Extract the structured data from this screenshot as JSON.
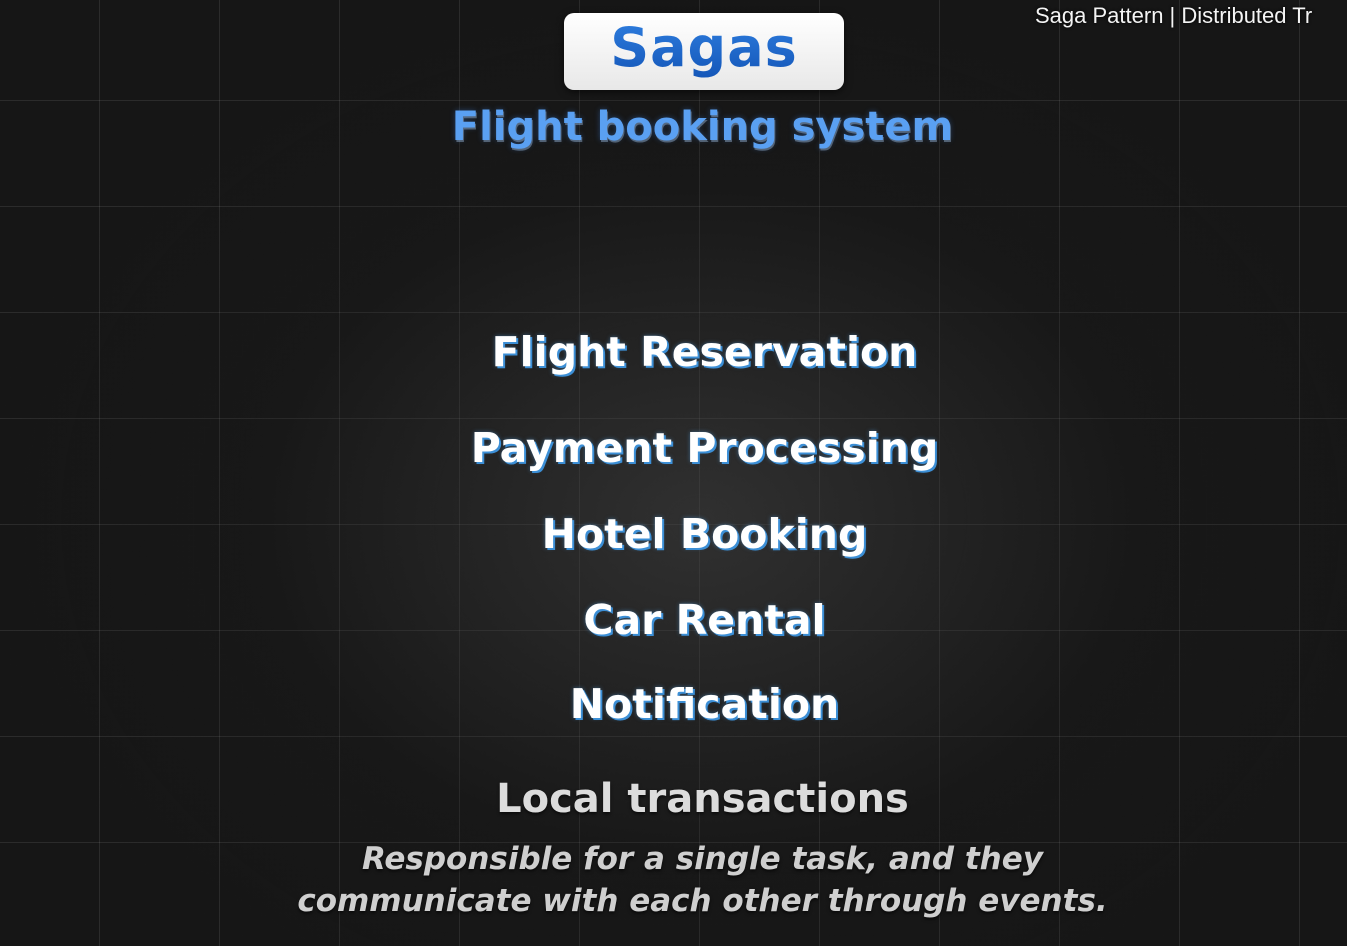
{
  "video_title": "Saga Pattern | Distributed Tr",
  "slide": {
    "title": "Sagas",
    "subtitle": "Flight booking system",
    "services": [
      "Flight Reservation",
      "Payment Processing",
      "Hotel Booking",
      "Car Rental",
      "Notification"
    ],
    "local_transactions": {
      "heading": "Local transactions",
      "description_line1": "Responsible for a single task, and they",
      "description_line2": "communicate with each other through events."
    }
  },
  "colors": {
    "background": "#161616",
    "accent_blue": "#1f6fd0",
    "subtitle_blue": "#5aa0f2"
  }
}
